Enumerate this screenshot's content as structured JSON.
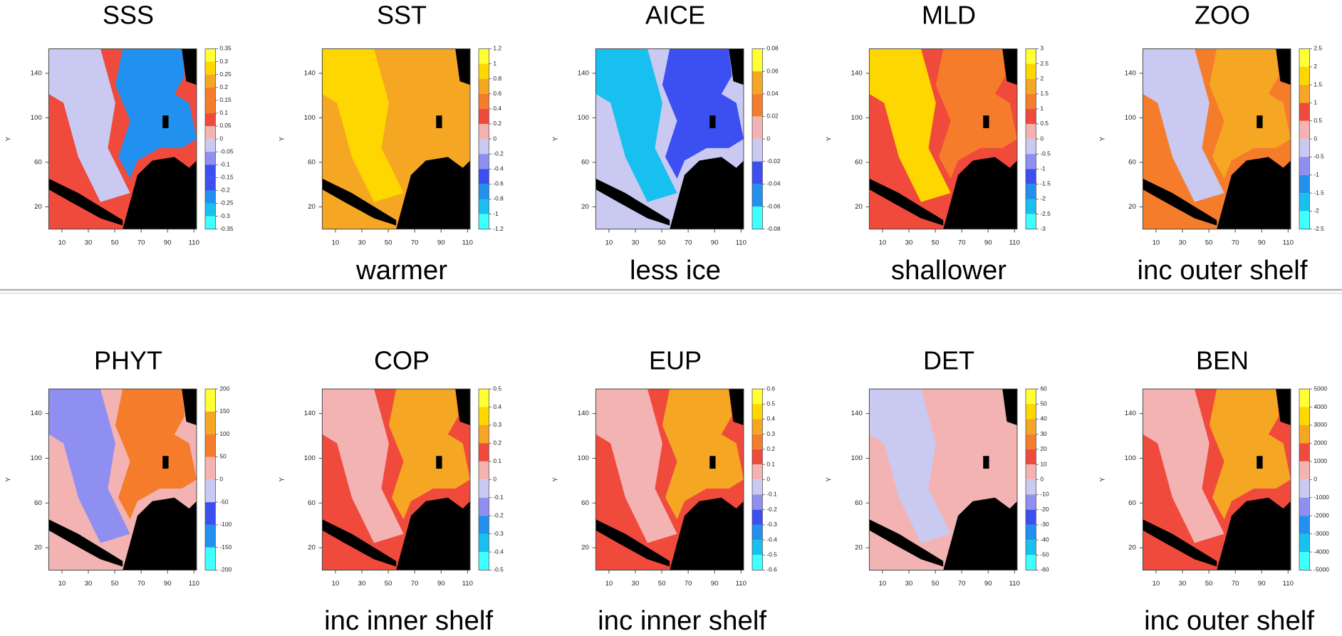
{
  "axes": {
    "xlim": [
      0,
      112
    ],
    "ylim": [
      0,
      162
    ],
    "xticks": [
      10,
      30,
      50,
      70,
      90,
      110
    ],
    "yticks": [
      20,
      60,
      100,
      140
    ],
    "ylabel": "Y"
  },
  "panels": [
    {
      "title": "SSS",
      "colorbar": [
        "0.35",
        "0.3",
        "0.25",
        "0.2",
        "0.15",
        "0.1",
        "0.05",
        "0",
        "-0.05",
        "-0.1",
        "-0.15",
        "-0.2",
        "-0.25",
        "-0.3",
        "-0.35"
      ]
    },
    {
      "title": "SST",
      "caption": "warmer",
      "colorbar": [
        "1.2",
        "1",
        "0.8",
        "0.6",
        "0.4",
        "0.2",
        "0",
        "-0.2",
        "-0.4",
        "-0.6",
        "-0.8",
        "-1",
        "-1.2"
      ]
    },
    {
      "title": "AICE",
      "caption": "less ice",
      "colorbar": [
        "0.08",
        "0.06",
        "0.04",
        "0.02",
        "0",
        "-0.02",
        "-0.04",
        "-0.06",
        "-0.08"
      ]
    },
    {
      "title": "MLD",
      "caption": "shallower",
      "colorbar": [
        "3",
        "2.5",
        "2",
        "1.5",
        "1",
        "0.5",
        "0",
        "-0.5",
        "-1",
        "-1.5",
        "-2",
        "-2.5",
        "-3"
      ]
    },
    {
      "title": "ZOO",
      "caption": "inc outer shelf",
      "colorbar": [
        "2.5",
        "2",
        "1.5",
        "1",
        "0.5",
        "0",
        "-0.5",
        "-1",
        "-1.5",
        "-2",
        "-2.5"
      ]
    },
    {
      "title": "PHYT",
      "colorbar": [
        "200",
        "150",
        "100",
        "50",
        "0",
        "-50",
        "-100",
        "-150",
        "-200"
      ]
    },
    {
      "title": "COP",
      "caption": "inc inner shelf",
      "colorbar": [
        "0.5",
        "0.4",
        "0.3",
        "0.2",
        "0.1",
        "0",
        "-0.1",
        "-0.2",
        "-0.3",
        "-0.4",
        "-0.5"
      ]
    },
    {
      "title": "EUP",
      "caption": "inc inner shelf",
      "colorbar": [
        "0.6",
        "0.5",
        "0.4",
        "0.3",
        "0.2",
        "0.1",
        "0",
        "-0.1",
        "-0.2",
        "-0.3",
        "-0.4",
        "-0.5",
        "-0.6"
      ]
    },
    {
      "title": "DET",
      "colorbar": [
        "60",
        "50",
        "40",
        "30",
        "20",
        "10",
        "0",
        "-10",
        "-20",
        "-30",
        "-40",
        "-50",
        "-60"
      ]
    },
    {
      "title": "BEN",
      "caption": "inc outer shelf",
      "colorbar": [
        "5000",
        "4000",
        "3000",
        "2000",
        "1000",
        "0",
        "-1000",
        "-2000",
        "-3000",
        "-4000",
        "-5000"
      ]
    }
  ]
}
